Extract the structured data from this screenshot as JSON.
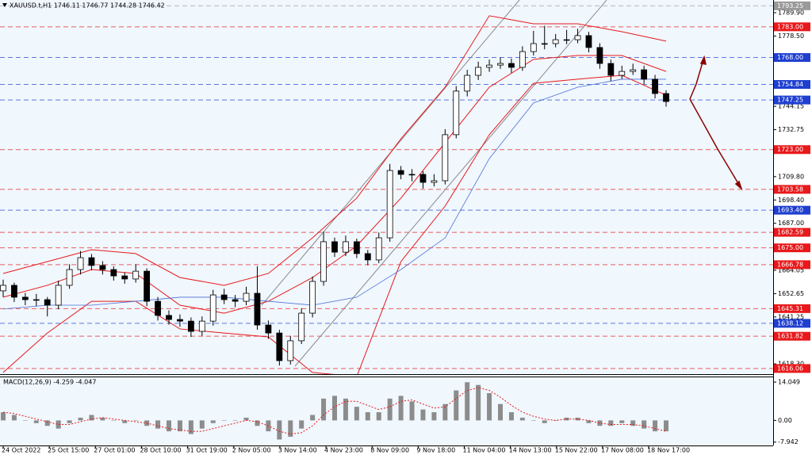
{
  "chart_data": [
    {
      "type": "candlestick",
      "title": "XAUUSD.t,H1  1746.11 1746.77 1744.28 1746.42",
      "categories": [
        "24 Oct 2022",
        "25 Oct 15:00",
        "27 Oct 01:00",
        "28 Oct 10:00",
        "31 Oct 19:00",
        "2 Nov 05:00",
        "3 Nov 14:00",
        "4 Nov 23:00",
        "8 Nov 09:00",
        "9 Nov 18:00",
        "11 Nov 04:00",
        "14 Nov 13:00",
        "15 Nov 22:00",
        "17 Nov 08:00",
        "18 Nov 17:00"
      ],
      "open": [
        1654.0,
        1656.7,
        1650.9,
        1649.7,
        1649.7,
        1647.0,
        1656.7,
        1664.4,
        1670.2,
        1666.4,
        1664.4,
        1661.3,
        1659.8,
        1663.6,
        1648.9,
        1642.0,
        1640.0,
        1639.2,
        1634.2,
        1639.2,
        1652.0,
        1649.7,
        1648.9,
        1652.8,
        1637.3,
        1633.4,
        1619.9,
        1629.6,
        1643.1,
        1658.6,
        1678.0,
        1672.9,
        1678.0,
        1672.2,
        1669.1,
        1679.9,
        1712.8,
        1710.9,
        1710.9,
        1707.0,
        1707.8,
        1730.3,
        1751.6,
        1759.3,
        1763.2,
        1764.3,
        1765.1,
        1763.2,
        1770.9,
        1774.8,
        1774.8,
        1776.7,
        1776.7,
        1778.7,
        1772.9,
        1765.1,
        1759.3,
        1761.2,
        1762.0,
        1757.4,
        1750.4
      ],
      "high": [
        1659.5,
        1658.0,
        1653.0,
        1652.5,
        1651.0,
        1659.0,
        1667.0,
        1673.5,
        1672.0,
        1668.5,
        1666.0,
        1663.0,
        1667.0,
        1665.0,
        1651.0,
        1644.5,
        1642.5,
        1641.0,
        1641.5,
        1654.5,
        1655.0,
        1652.0,
        1656.0,
        1666.0,
        1639.5,
        1635.0,
        1632.0,
        1645.5,
        1661.0,
        1683.0,
        1680.0,
        1681.0,
        1679.5,
        1674.0,
        1682.5,
        1716.0,
        1715.0,
        1713.5,
        1712.5,
        1711.0,
        1733.0,
        1754.0,
        1762.0,
        1766.0,
        1767.0,
        1768.0,
        1767.5,
        1773.5,
        1781.0,
        1783.5,
        1779.5,
        1781.5,
        1782.0,
        1780.5,
        1775.0,
        1767.0,
        1764.0,
        1765.0,
        1764.0,
        1759.5,
        1752.0
      ],
      "low": [
        1651.0,
        1648.5,
        1647.0,
        1646.5,
        1641.5,
        1645.0,
        1655.0,
        1662.0,
        1664.0,
        1662.0,
        1659.0,
        1657.5,
        1658.0,
        1646.5,
        1639.5,
        1637.5,
        1636.5,
        1631.5,
        1632.0,
        1637.0,
        1647.5,
        1646.0,
        1647.0,
        1635.0,
        1630.5,
        1617.5,
        1618.0,
        1628.0,
        1641.0,
        1656.5,
        1670.5,
        1671.0,
        1670.0,
        1666.5,
        1667.5,
        1678.0,
        1708.5,
        1707.5,
        1704.0,
        1705.0,
        1706.0,
        1728.5,
        1749.0,
        1757.0,
        1761.0,
        1762.5,
        1760.5,
        1761.5,
        1769.0,
        1772.0,
        1773.0,
        1774.5,
        1775.0,
        1770.5,
        1762.5,
        1756.5,
        1757.5,
        1759.5,
        1755.0,
        1748.0,
        1744.0
      ],
      "close": [
        1656.7,
        1650.9,
        1649.7,
        1649.7,
        1647.0,
        1656.7,
        1664.4,
        1670.2,
        1666.4,
        1664.4,
        1661.3,
        1659.8,
        1663.6,
        1648.9,
        1642.0,
        1640.0,
        1639.2,
        1634.2,
        1639.2,
        1652.0,
        1649.7,
        1648.9,
        1652.8,
        1637.3,
        1633.4,
        1619.9,
        1629.6,
        1643.1,
        1658.6,
        1678.0,
        1672.9,
        1678.0,
        1672.2,
        1669.1,
        1679.9,
        1712.8,
        1710.9,
        1710.9,
        1707.0,
        1707.8,
        1730.3,
        1751.6,
        1759.3,
        1763.2,
        1764.3,
        1765.1,
        1763.2,
        1770.9,
        1774.8,
        1774.8,
        1776.7,
        1776.7,
        1778.7,
        1772.9,
        1765.1,
        1759.3,
        1761.2,
        1762.0,
        1757.4,
        1750.4,
        1746.5
      ],
      "overlays": [
        {
          "color": "#e8191b",
          "values": [
            1662.5,
            1668.3,
            1674.1,
            1672.2,
            1660.5,
            1656.7,
            1662.5,
            1679.9,
            1699.3,
            1728.3,
            1753.5,
            1788.4,
            1784.5,
            1784.5,
            1780.6,
            1776.0
          ]
        },
        {
          "color": "#e8191b",
          "values": [
            1650.9,
            1656.7,
            1664.4,
            1662.5,
            1647.0,
            1643.1,
            1648.9,
            1660.5,
            1676.0,
            1699.3,
            1726.4,
            1753.5,
            1767.1,
            1769.0,
            1769.0,
            1761.2
          ]
        },
        {
          "color": "#e8191b",
          "values": [
            1614.1,
            1633.4,
            1648.9,
            1648.9,
            1635.4,
            1633.4,
            1631.5,
            1614.1,
            1612.1,
            1668.3,
            1695.4,
            1730.3,
            1755.4,
            1757.4,
            1759.3,
            1749.6
          ]
        },
        {
          "color": "#4a6fd8",
          "values": [
            1645.1,
            1647.0,
            1647.0,
            1648.9,
            1650.9,
            1650.9,
            1648.9,
            1647.0,
            1650.9,
            1664.4,
            1679.9,
            1718.6,
            1745.8,
            1753.5,
            1757.4,
            1757.4
          ]
        }
      ],
      "levels": [
        {
          "value": 1793.25,
          "label": "1793.25",
          "color": "#9a9a9a"
        },
        {
          "value": 1783.0,
          "label": "1783.00",
          "color": "#e8191b"
        },
        {
          "value": 1768.0,
          "label": "1768.00",
          "color": "#1f3fd0"
        },
        {
          "value": 1754.84,
          "label": "1754.84",
          "color": "#1f3fd0"
        },
        {
          "value": 1747.25,
          "label": "1747.25",
          "color": "#1f3fd0"
        },
        {
          "value": 1723.0,
          "label": "1723.00",
          "color": "#e8191b"
        },
        {
          "value": 1703.58,
          "label": "1703.58",
          "color": "#e8191b"
        },
        {
          "value": 1693.4,
          "label": "1693.40",
          "color": "#1f3fd0"
        },
        {
          "value": 1682.59,
          "label": "1682.59",
          "color": "#e8191b"
        },
        {
          "value": 1675.0,
          "label": "1675.00",
          "color": "#e8191b"
        },
        {
          "value": 1666.78,
          "label": "1666.78",
          "color": "#e8191b"
        },
        {
          "value": 1645.31,
          "label": "1645.31",
          "color": "#e8191b"
        },
        {
          "value": 1638.12,
          "label": "1638.12",
          "color": "#1f3fd0"
        },
        {
          "value": 1631.82,
          "label": "1631.82",
          "color": "#e8191b"
        },
        {
          "value": 1616.06,
          "label": "1616.06",
          "color": "#e8191b"
        }
      ],
      "ylim": [
        1613.3,
        1796.1
      ],
      "yticks": [
        {
          "value": 1789.9,
          "label": "1789.90"
        },
        {
          "value": 1778.5,
          "label": "1778.50"
        },
        1744.15,
        1732.75,
        {
          "value": 1709.8,
          "label": "1709.80"
        },
        {
          "value": 1698.4,
          "label": "1698.40"
        },
        {
          "value": 1687.0,
          "label": "1687.00"
        },
        1664.05,
        1652.65,
        1641.25,
        {
          "value": 1618.3,
          "label": "1618.30"
        }
      ]
    },
    {
      "type": "macd",
      "title": "MACD(12,26,9) -4.259 -4.047",
      "histogram": {
        "color": "#8c8c8c",
        "values": [
          3,
          2,
          0,
          -1,
          -2,
          -3,
          -1,
          1,
          2,
          1,
          0,
          -1,
          0,
          -2,
          -3,
          -4,
          -4,
          -5,
          -3,
          -1,
          0,
          0,
          1,
          -2,
          -4,
          -7,
          -6,
          -3,
          2,
          8,
          9,
          8,
          5,
          3,
          3,
          8,
          9,
          7,
          4,
          3,
          6,
          11,
          14,
          13,
          10,
          6,
          3,
          1,
          0,
          -1,
          0,
          1,
          1,
          -1,
          -2,
          -2,
          -1,
          -2,
          -3,
          -4,
          -4
        ]
      },
      "signal": {
        "color": "#e8191b",
        "values": [
          3,
          2.5,
          1.5,
          0.5,
          -0.5,
          -1.5,
          -1.5,
          -0.5,
          0.5,
          1,
          0.5,
          0,
          -0.5,
          -1,
          -2,
          -3,
          -3.5,
          -4,
          -4,
          -3,
          -2,
          -1,
          0,
          -0.5,
          -2,
          -4,
          -5,
          -4.5,
          -2,
          2,
          5,
          7,
          7,
          5.5,
          4,
          5,
          7,
          7.5,
          6,
          4.5,
          5,
          8,
          11,
          12,
          11,
          8.5,
          5.5,
          3,
          1.5,
          0.5,
          0,
          0.5,
          0.5,
          0,
          -1,
          -1.5,
          -1.5,
          -1.5,
          -2,
          -3,
          -4
        ]
      },
      "ylim": [
        -9.2,
        15.8
      ],
      "yticks": [
        14.049,
        {
          "value": 0,
          "label": "0.00"
        },
        -7.942
      ]
    }
  ]
}
